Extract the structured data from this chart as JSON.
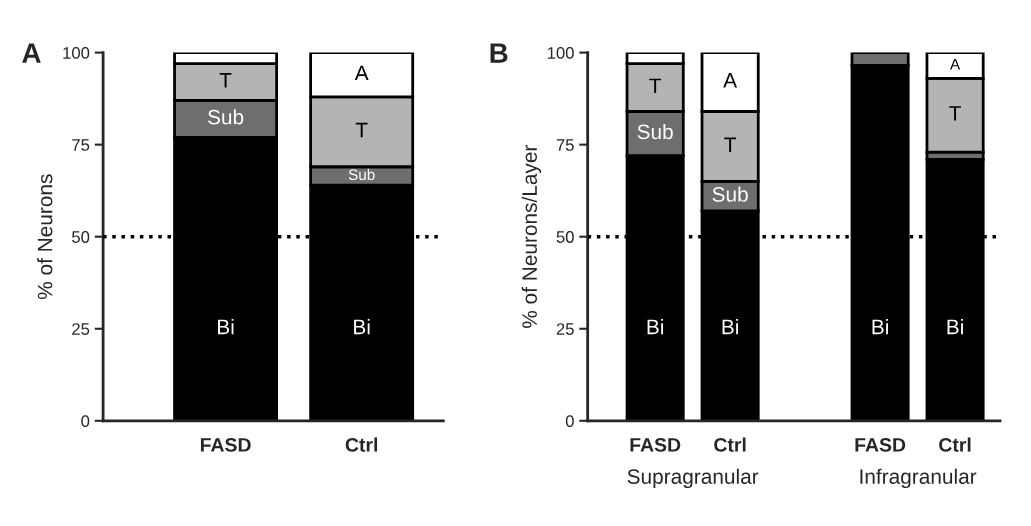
{
  "chart_data": [
    {
      "type": "bar",
      "title": "A",
      "ylabel": "% of Neurons",
      "categories": [
        "FASD",
        "Ctrl"
      ],
      "stacked": true,
      "series": [
        {
          "name": "Bi",
          "color": "#000000",
          "values": [
            77,
            64
          ]
        },
        {
          "name": "Sub",
          "color": "#6e6e6e",
          "values": [
            10,
            5
          ]
        },
        {
          "name": "T",
          "color": "#b4b4b4",
          "values": [
            10,
            19
          ]
        },
        {
          "name": "A",
          "color": "#ffffff",
          "values": [
            3,
            12
          ]
        }
      ],
      "ylim": [
        0,
        100
      ],
      "yticks": [
        0,
        25,
        50,
        75,
        100
      ],
      "grid": false,
      "legend": false,
      "ref_lines": [
        {
          "axis": "y",
          "value": 50,
          "line_style": "dotted"
        }
      ]
    },
    {
      "type": "bar",
      "title": "B",
      "ylabel": "% of Neurons/Layer",
      "categories": [
        "FASD",
        "Ctrl",
        null,
        "FASD",
        "Ctrl"
      ],
      "stacked": true,
      "series": [
        {
          "name": "Bi",
          "color": "#000000",
          "values": [
            72,
            57,
            null,
            96.5,
            71
          ]
        },
        {
          "name": "Sub",
          "color": "#6e6e6e",
          "values": [
            12,
            8,
            null,
            3.5,
            2
          ]
        },
        {
          "name": "T",
          "color": "#b4b4b4",
          "values": [
            13,
            19,
            null,
            null,
            20
          ]
        },
        {
          "name": "A",
          "color": "#ffffff",
          "values": [
            3,
            16,
            null,
            null,
            7
          ]
        }
      ],
      "ylim": [
        0,
        100
      ],
      "yticks": [
        0,
        25,
        50,
        75,
        100
      ],
      "grid": false,
      "legend": false,
      "ref_lines": [
        {
          "axis": "y",
          "value": 50,
          "line_style": "dotted"
        }
      ],
      "annotations": [
        "Supragranular",
        "Infragranular"
      ]
    }
  ]
}
